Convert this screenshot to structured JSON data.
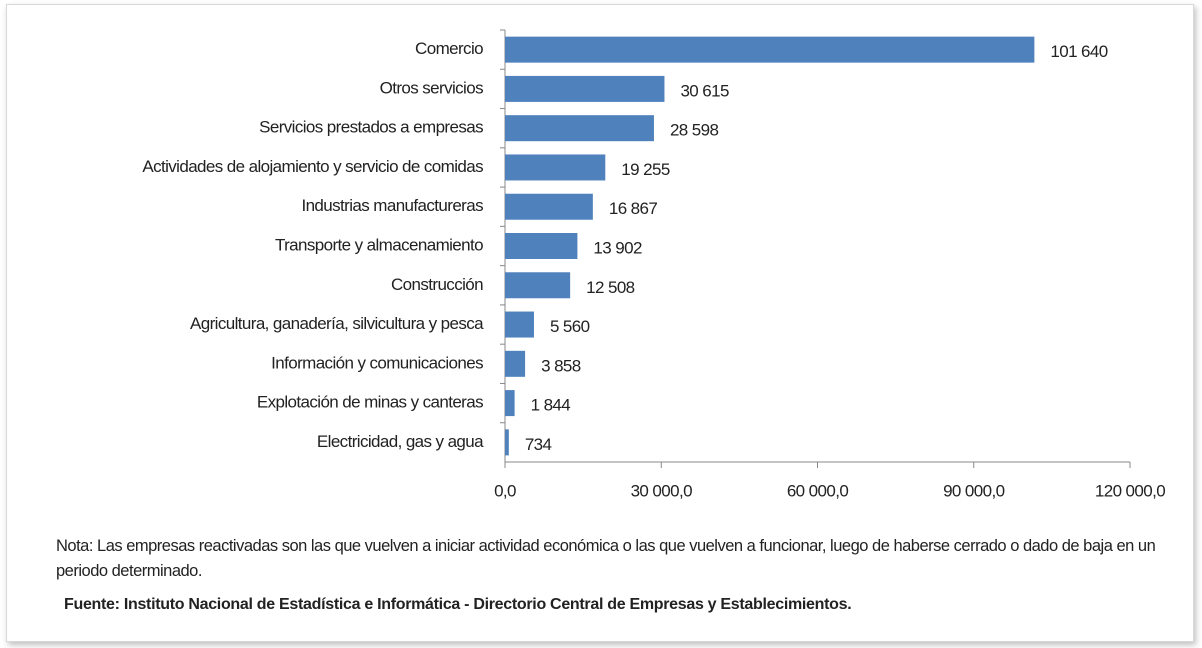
{
  "chart_data": {
    "type": "bar",
    "orientation": "horizontal",
    "categories": [
      "Comercio",
      "Otros servicios",
      "Servicios prestados a empresas",
      "Actividades de alojamiento y servicio de comidas",
      "Industrias manufactureras",
      "Transporte y almacenamiento",
      "Construcción",
      "Agricultura, ganadería, silvicultura y pesca",
      "Información y comunicaciones",
      "Explotación de minas y canteras",
      "Electricidad, gas y agua"
    ],
    "values": [
      101640,
      30615,
      28598,
      19255,
      16867,
      13902,
      12508,
      5560,
      3858,
      1844,
      734
    ],
    "value_labels": [
      "101 640",
      "30 615",
      "28 598",
      "19 255",
      "16 867",
      "13 902",
      "12 508",
      "5 560",
      "3 858",
      "1 844",
      "734"
    ],
    "color": "#4f81bd",
    "xlim": [
      0,
      120000
    ],
    "xticks": [
      {
        "value": 0,
        "label": "0,0"
      },
      {
        "value": 30000,
        "label": "30 000,0"
      },
      {
        "value": 60000,
        "label": "60 000,0"
      },
      {
        "value": 90000,
        "label": "90 000,0"
      },
      {
        "value": 120000,
        "label": "120 000,0"
      }
    ],
    "grid": false
  },
  "note": "Nota: Las empresas reactivadas son las que vuelven a iniciar actividad económica o las que vuelven a funcionar, luego de haberse cerrado o dado de baja en un periodo determinado.",
  "source": "Fuente:  Instituto Nacional de Estadística e Informática - Directorio Central de Empresas y Establecimientos."
}
